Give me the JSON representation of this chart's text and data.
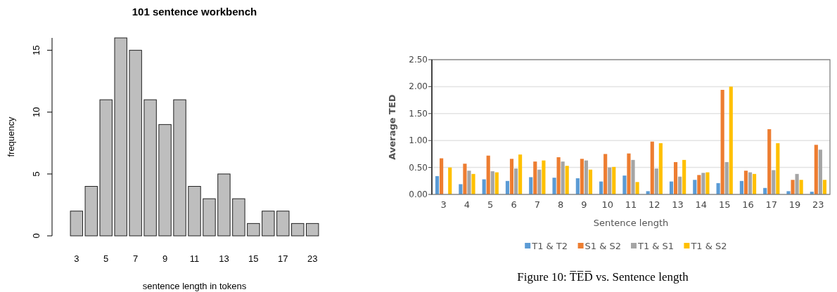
{
  "chart_data": [
    {
      "type": "bar",
      "title": "101 sentence workbench",
      "xlabel": "sentence length in tokens",
      "ylabel": "frequency",
      "categories": [
        "3",
        null,
        "5",
        null,
        "7",
        null,
        "9",
        null,
        "11",
        null,
        "13",
        null,
        "15",
        null,
        "17",
        null,
        "23"
      ],
      "values": [
        2,
        4,
        11,
        16,
        15,
        11,
        9,
        11,
        4,
        3,
        5,
        3,
        1,
        2,
        2,
        1,
        1
      ],
      "color": "#bebebe",
      "ylim": [
        0,
        16
      ],
      "yticks": [
        0,
        5,
        10,
        15
      ],
      "grid": false
    },
    {
      "type": "bar",
      "xlabel": "Sentence length",
      "ylabel": "Average TED",
      "categories": [
        "3",
        "4",
        "5",
        "6",
        "7",
        "8",
        "9",
        "10",
        "11",
        "12",
        "13",
        "14",
        "15",
        "16",
        "17",
        "19",
        "23"
      ],
      "series": [
        {
          "name": "T1 & T2",
          "color": "#5b9bd5",
          "values": [
            0.34,
            0.19,
            0.28,
            0.25,
            0.32,
            0.31,
            0.3,
            0.24,
            0.35,
            0.06,
            0.24,
            0.27,
            0.21,
            0.25,
            0.12,
            0.06,
            0.05
          ]
        },
        {
          "name": "S1 & S2",
          "color": "#ed7d31",
          "values": [
            0.67,
            0.57,
            0.72,
            0.66,
            0.61,
            0.69,
            0.66,
            0.75,
            0.76,
            0.98,
            0.6,
            0.36,
            1.94,
            0.44,
            1.21,
            0.27,
            0.92
          ]
        },
        {
          "name": "T1 & S1",
          "color": "#a5a5a5",
          "values": [
            null,
            0.44,
            0.43,
            0.48,
            0.46,
            0.61,
            0.63,
            0.5,
            0.64,
            0.48,
            0.33,
            0.4,
            0.6,
            0.41,
            0.45,
            0.38,
            0.83
          ]
        },
        {
          "name": "T1 & S2",
          "color": "#ffc000",
          "values": [
            0.5,
            0.38,
            0.41,
            0.74,
            0.63,
            0.53,
            0.46,
            0.51,
            0.23,
            0.95,
            0.64,
            0.41,
            2.0,
            0.38,
            0.95,
            0.27,
            0.27
          ]
        }
      ],
      "ylim": [
        0,
        2.5
      ],
      "yticks": [
        {
          "value": 0,
          "label": "0.00"
        },
        {
          "value": 0.5,
          "label": "0.50"
        },
        {
          "value": 1,
          "label": "1.00"
        },
        {
          "value": 1.5,
          "label": "1.50"
        },
        {
          "value": 2,
          "label": "2.00"
        },
        {
          "value": 2.5,
          "label": "2.50"
        }
      ],
      "grid": "y",
      "legend": "bottom",
      "annotations": [
        "Figure 10: T̅E̅D̅ vs. Sentence length"
      ]
    }
  ]
}
